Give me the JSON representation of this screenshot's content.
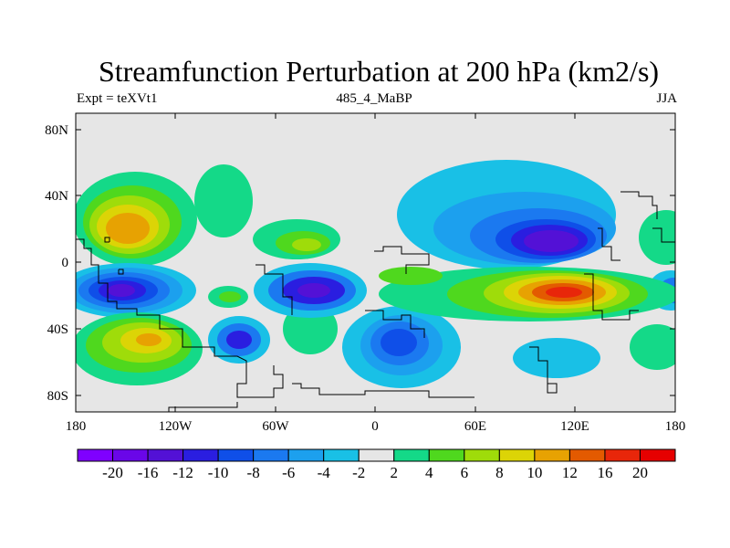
{
  "title": "Streamfunction Perturbation at 200 hPa (km2/s)",
  "subtitle_left": "Expt = teXVt1",
  "subtitle_center": "485_4_MaBP",
  "subtitle_right": "JJA",
  "axes": {
    "lat_ticks": [
      "80N",
      "40N",
      "0",
      "40S",
      "80S"
    ],
    "lon_ticks": [
      "180",
      "120W",
      "60W",
      "0",
      "60E",
      "120E",
      "180"
    ]
  },
  "colorbar": {
    "labels": [
      "-20",
      "-16",
      "-12",
      "-10",
      "-8",
      "-6",
      "-4",
      "-2",
      "2",
      "4",
      "6",
      "8",
      "10",
      "12",
      "16",
      "20"
    ],
    "colors": [
      "#7f00ff",
      "#6a06e8",
      "#5311d6",
      "#2a1ee0",
      "#0f4fe8",
      "#1b79f0",
      "#1ca0ee",
      "#19c0e6",
      "#e6e6e6",
      "#14d988",
      "#4fd81e",
      "#9fdc0a",
      "#dcd406",
      "#e7a202",
      "#e35a00",
      "#e8260a",
      "#e60000"
    ]
  }
}
